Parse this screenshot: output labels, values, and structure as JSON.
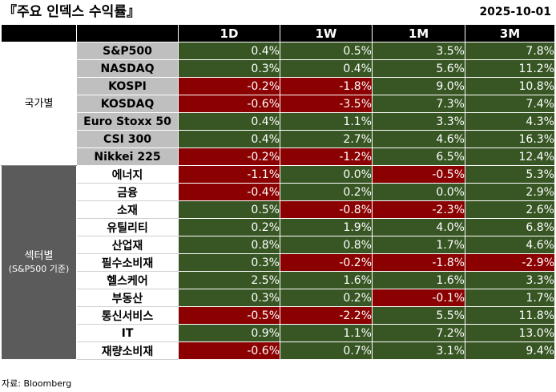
{
  "title": "『주요 인덱스 수익률』",
  "date": "2025-10-01",
  "source": "자료: Bloomberg",
  "colors": {
    "positive": "#375623",
    "negative": "#8b0000",
    "header": "#000000",
    "sector_group": "#5b5b5b",
    "country_name": "#bfbfbf"
  },
  "chart_data": {
    "type": "table",
    "columns": [
      "1D",
      "1W",
      "1M",
      "3M"
    ],
    "groups": [
      {
        "label": "국가별",
        "sublabel": "",
        "rows": [
          {
            "name": "S&P500",
            "values": [
              "0.4%",
              "0.5%",
              "3.5%",
              "7.8%"
            ]
          },
          {
            "name": "NASDAQ",
            "values": [
              "0.3%",
              "0.4%",
              "5.6%",
              "11.2%"
            ]
          },
          {
            "name": "KOSPI",
            "values": [
              "-0.2%",
              "-1.8%",
              "9.0%",
              "10.8%"
            ]
          },
          {
            "name": "KOSDAQ",
            "values": [
              "-0.6%",
              "-3.5%",
              "7.3%",
              "7.4%"
            ]
          },
          {
            "name": "Euro Stoxx 50",
            "values": [
              "0.4%",
              "1.1%",
              "3.3%",
              "4.3%"
            ]
          },
          {
            "name": "CSI 300",
            "values": [
              "0.4%",
              "2.7%",
              "4.6%",
              "16.3%"
            ]
          },
          {
            "name": "Nikkei 225",
            "values": [
              "-0.2%",
              "-1.2%",
              "6.5%",
              "12.4%"
            ]
          }
        ]
      },
      {
        "label": "섹터별",
        "sublabel": "(S&P500 기준)",
        "rows": [
          {
            "name": "에너지",
            "values": [
              "-1.1%",
              "0.0%",
              "-0.5%",
              "5.3%"
            ]
          },
          {
            "name": "금융",
            "values": [
              "-0.4%",
              "0.2%",
              "0.0%",
              "2.9%"
            ]
          },
          {
            "name": "소재",
            "values": [
              "0.5%",
              "-0.8%",
              "-2.3%",
              "2.6%"
            ]
          },
          {
            "name": "유틸리티",
            "values": [
              "0.2%",
              "1.9%",
              "4.0%",
              "6.8%"
            ]
          },
          {
            "name": "산업재",
            "values": [
              "0.8%",
              "0.8%",
              "1.7%",
              "4.6%"
            ]
          },
          {
            "name": "필수소비재",
            "values": [
              "0.3%",
              "-0.2%",
              "-1.8%",
              "-2.9%"
            ]
          },
          {
            "name": "헬스케어",
            "values": [
              "2.5%",
              "1.6%",
              "1.6%",
              "3.3%"
            ]
          },
          {
            "name": "부동산",
            "values": [
              "0.3%",
              "0.2%",
              "-0.1%",
              "1.7%"
            ]
          },
          {
            "name": "통신서비스",
            "values": [
              "-0.5%",
              "-2.2%",
              "5.5%",
              "11.8%"
            ]
          },
          {
            "name": "IT",
            "values": [
              "0.9%",
              "1.1%",
              "7.2%",
              "13.0%"
            ]
          },
          {
            "name": "재량소비재",
            "values": [
              "-0.6%",
              "0.7%",
              "3.1%",
              "9.4%"
            ]
          }
        ]
      }
    ]
  }
}
